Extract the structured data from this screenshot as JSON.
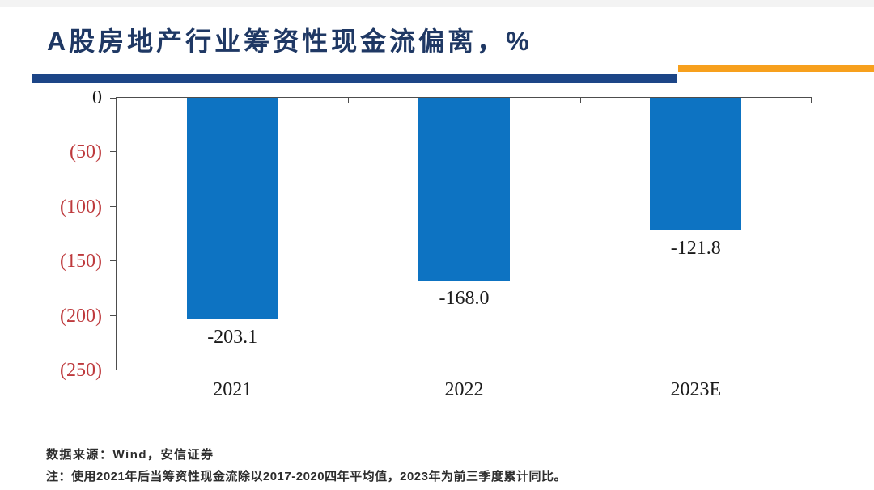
{
  "title": "A股房地产行业筹资性现金流偏离，%",
  "footer": {
    "source": "数据来源：Wind，安信证券",
    "note": "注：使用2021年后当筹资性现金流除以2017-2020四年平均值，2023年为前三季度累计同比。"
  },
  "colors": {
    "title": "#1F3864",
    "divider_blue": "#1C4587",
    "divider_orange": "#F7A01D",
    "bar": "#0D73C2",
    "tick_label_negative": "#BE3A3D",
    "tick_label_zero": "#1a1a1a",
    "axis_line": "#4d4d4d"
  },
  "chart_data": {
    "type": "bar",
    "orientation": "vertical",
    "title": "A股房地产行业筹资性现金流偏离，%",
    "categories": [
      "2021",
      "2022",
      "2023E"
    ],
    "values": [
      -203.1,
      -168.0,
      -121.8
    ],
    "data_labels": [
      "-203.1",
      "-168.0",
      "-121.8"
    ],
    "xlabel": "",
    "ylabel": "",
    "ylim": [
      -250,
      0
    ],
    "y_ticks": [
      0,
      -50,
      -100,
      -150,
      -200,
      -250
    ],
    "y_tick_labels": [
      "0",
      "(50)",
      "(100)",
      "(150)",
      "(200)",
      "(250)"
    ],
    "grid": false,
    "legend": false,
    "bar_color": "#0D73C2"
  }
}
